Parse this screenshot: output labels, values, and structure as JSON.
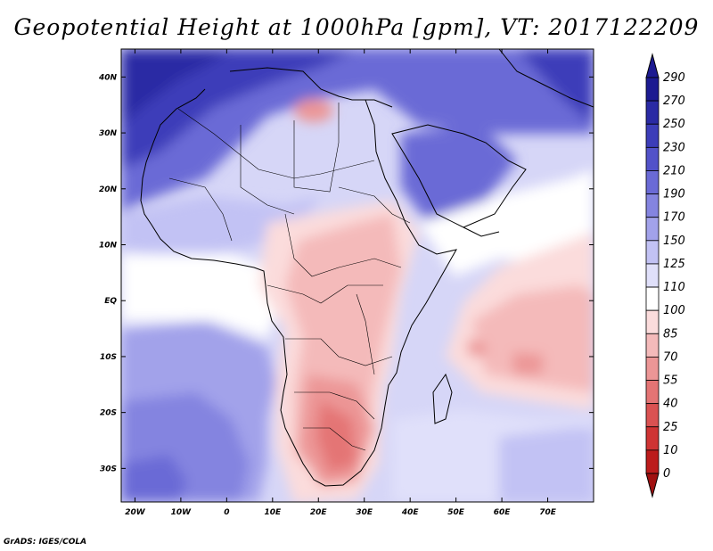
{
  "title": "Geopotential Height at 1000hPa [gpm], VT: 2017122209",
  "credit": "GrADS: IGES/COLA",
  "map": {
    "lon_range": [
      -23,
      80
    ],
    "lat_range": [
      -36,
      45
    ],
    "x_ticks": [
      "20W",
      "10W",
      "0",
      "10E",
      "20E",
      "30E",
      "40E",
      "50E",
      "60E",
      "70E"
    ],
    "y_ticks": [
      "40N",
      "30N",
      "20N",
      "10N",
      "EQ",
      "10S",
      "20S",
      "30S"
    ]
  },
  "colorbar": {
    "labels": [
      "290",
      "270",
      "250",
      "230",
      "210",
      "190",
      "170",
      "150",
      "125",
      "110",
      "100",
      "85",
      "70",
      "55",
      "40",
      "25",
      "10",
      "0"
    ],
    "colors": [
      "#1c1a91",
      "#2a2aa4",
      "#3c3db9",
      "#5252c9",
      "#6a6ad6",
      "#8484e0",
      "#a2a2ea",
      "#c2c2f4",
      "#e0e0fa",
      "#ffffff",
      "#fbdcdc",
      "#f4baba",
      "#ec9696",
      "#e47474",
      "#da5252",
      "#cf3434",
      "#bc1c1c",
      "#a01010"
    ]
  }
}
